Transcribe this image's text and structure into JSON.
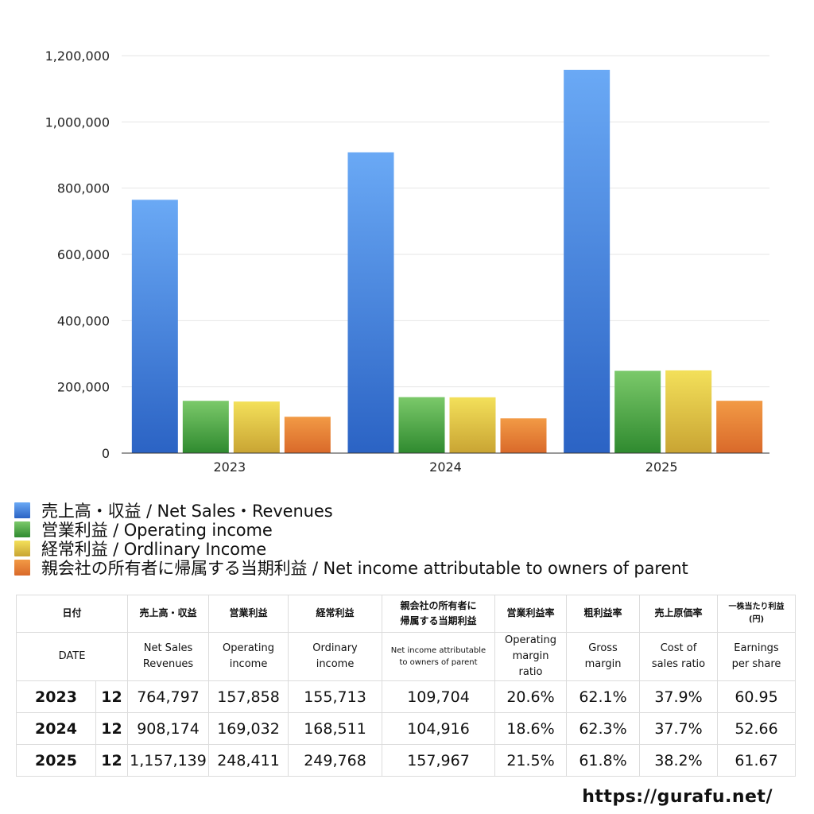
{
  "chart_data": {
    "type": "bar",
    "categories": [
      "2023",
      "2024",
      "2025"
    ],
    "ylim": [
      0,
      1200000
    ],
    "yticks": [
      0,
      200000,
      400000,
      600000,
      800000,
      1000000,
      1200000
    ],
    "ytick_labels": [
      "0",
      "200,000",
      "400,000",
      "600,000",
      "800,000",
      "1,000,000",
      "1,200,000"
    ],
    "grid": true,
    "legend_position": "bottom-left",
    "series": [
      {
        "name": "売上高・収益 / Net Sales・Revenues",
        "values": [
          764797,
          908174,
          1157139
        ],
        "color_top": "#6aa9f5",
        "color_bottom": "#2b63c4"
      },
      {
        "name": "営業利益 / Operating income",
        "values": [
          157858,
          169032,
          248411
        ],
        "color_top": "#7bc96a",
        "color_bottom": "#2f8a2f"
      },
      {
        "name": "経常利益 / Ordlinary Income",
        "values": [
          155713,
          168511,
          249768
        ],
        "color_top": "#f3e05a",
        "color_bottom": "#c9a433"
      },
      {
        "name": "親会社の所有者に帰属する当期利益 / Net income attributable to owners of parent",
        "values": [
          109704,
          104916,
          157967
        ],
        "color_top": "#f29a45",
        "color_bottom": "#d9692a"
      }
    ]
  },
  "table": {
    "header_jp": {
      "date": "日付",
      "sales": "売上高・収益",
      "op": "営業利益",
      "ord": "経常利益",
      "net_1": "親会社の所有者に",
      "net_2": "帰属する当期利益",
      "opm": "営業利益率",
      "gm": "粗利益率",
      "cost": "売上原価率",
      "eps_1": "一株当たり利益",
      "eps_2": "(円)"
    },
    "header_en": {
      "date": "DATE",
      "sales_1": "Net Sales",
      "sales_2": "Revenues",
      "op_1": "Operating",
      "op_2": "income",
      "ord_1": "Ordinary",
      "ord_2": "income",
      "net_1": "Net income attributable",
      "net_2": "to owners of parent",
      "opm_1": "Operating",
      "opm_2": "margin",
      "opm_3": "ratio",
      "gm_1": "Gross",
      "gm_2": "margin",
      "cost_1": "Cost of",
      "cost_2": "sales ratio",
      "eps_1": "Earnings",
      "eps_2": "per share"
    },
    "rows": [
      {
        "year": "2023",
        "month": "12",
        "sales": "764,797",
        "op": "157,858",
        "ord": "155,713",
        "net": "109,704",
        "opm": "20.6%",
        "gm": "62.1%",
        "cost": "37.9%",
        "eps": "60.95"
      },
      {
        "year": "2024",
        "month": "12",
        "sales": "908,174",
        "op": "169,032",
        "ord": "168,511",
        "net": "104,916",
        "opm": "18.6%",
        "gm": "62.3%",
        "cost": "37.7%",
        "eps": "52.66"
      },
      {
        "year": "2025",
        "month": "12",
        "sales": "1,157,139",
        "op": "248,411",
        "ord": "249,768",
        "net": "157,967",
        "opm": "21.5%",
        "gm": "61.8%",
        "cost": "38.2%",
        "eps": "61.67"
      }
    ]
  },
  "site_url": "https://gurafu.net/"
}
